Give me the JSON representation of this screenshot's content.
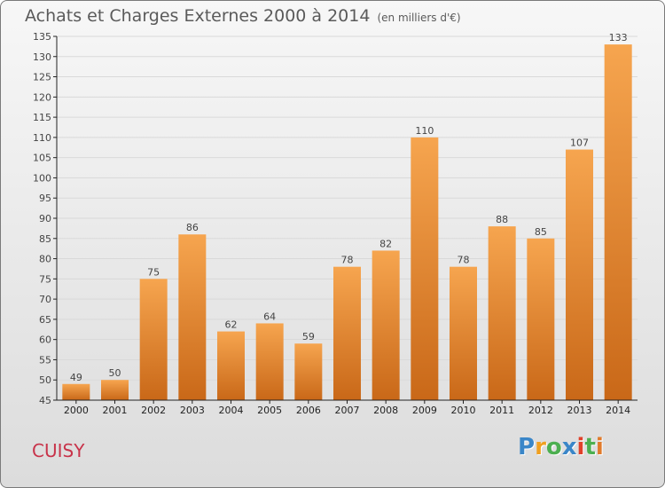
{
  "title": "Achats et Charges Externes 2000 à 2014",
  "subtitle": "(en milliers d'€)",
  "commune": "CUISY",
  "logo": {
    "text": "Proxiti",
    "letters": [
      "P",
      "r",
      "o",
      "x",
      "i",
      "t",
      "i"
    ],
    "colors": [
      "#3a86c8",
      "#f0a020",
      "#4caf50",
      "#3a86c8",
      "#e0412b",
      "#4caf50",
      "#e07b2b"
    ]
  },
  "chart_data": {
    "type": "bar",
    "title": "Achats et Charges Externes 2000 à 2014",
    "subtitle": "(en milliers d'€)",
    "xlabel": "",
    "ylabel": "",
    "categories": [
      "2000",
      "2001",
      "2002",
      "2003",
      "2004",
      "2005",
      "2006",
      "2007",
      "2008",
      "2009",
      "2010",
      "2011",
      "2012",
      "2013",
      "2014"
    ],
    "values": [
      49,
      50,
      75,
      86,
      62,
      64,
      59,
      78,
      82,
      110,
      78,
      88,
      85,
      107,
      133
    ],
    "ylim": [
      45,
      135
    ],
    "yticks": [
      45,
      50,
      55,
      60,
      65,
      70,
      75,
      80,
      85,
      90,
      95,
      100,
      105,
      110,
      115,
      120,
      125,
      130,
      135
    ],
    "grid": true,
    "colors": {
      "bar_top": "#f6a54f",
      "bar_bottom": "#c96818",
      "grid": "#d9d9d9",
      "axis": "#222222",
      "label": "#444444"
    }
  }
}
